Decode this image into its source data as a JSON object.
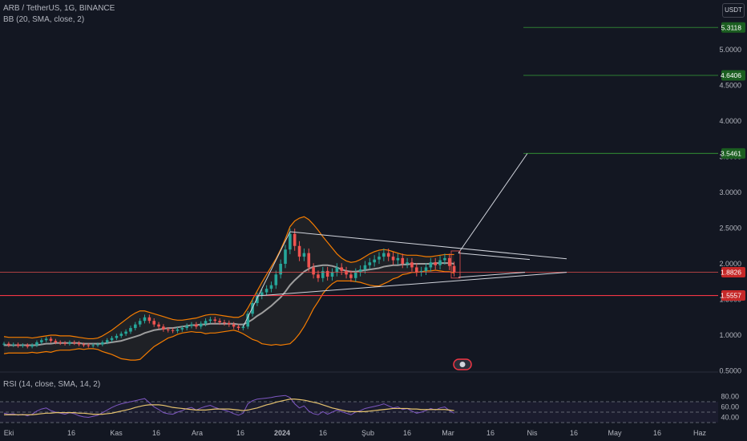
{
  "header": {
    "symbol_line": "ARB / TetherUS, 1G, BINANCE",
    "indicator_line": "BB (20, SMA, close, 2)",
    "rsi_line": "RSI (14, close, SMA, 14, 2)",
    "currency": "USDT"
  },
  "colors": {
    "background": "#131722",
    "candle_up": "#26a69a",
    "candle_down": "#ef5350",
    "bb_band": "#f57c00",
    "bb_basis": "#9e9e9e",
    "rsi_line": "#7e57c2",
    "rsi_ma": "#e6c36e",
    "target_line": "#2e7d32",
    "support_line": "#f23645",
    "pattern_lines": "#d1d4dc"
  },
  "chart_data": [
    {
      "type": "candlestick",
      "title": "ARB / TetherUS, 1G, BINANCE",
      "ylim": [
        0.46,
        5.5
      ],
      "y_ticks": [
        "5.0000",
        "4.5000",
        "4.0000",
        "3.5000",
        "3.0000",
        "2.5000",
        "2.0000",
        "1.5000",
        "1.0000",
        "0.5000"
      ],
      "x_ticks": [
        "Eki",
        "16",
        "Kas",
        "16",
        "Ara",
        "16",
        "2024",
        "16",
        "Şub",
        "16",
        "Mar",
        "16",
        "Nis",
        "16",
        "May",
        "16",
        "Haz"
      ],
      "price_tags": [
        {
          "label": "5.3118",
          "value": 5.3118,
          "kind": "target"
        },
        {
          "label": "4.6406",
          "value": 4.6406,
          "kind": "target"
        },
        {
          "label": "3.5461",
          "value": 3.5461,
          "kind": "target"
        },
        {
          "label": "1.8826",
          "value": 1.8826,
          "kind": "current"
        },
        {
          "label": "1.5557",
          "value": 1.5557,
          "kind": "support"
        }
      ],
      "closes": [
        0.88,
        0.86,
        0.87,
        0.85,
        0.86,
        0.84,
        0.86,
        0.9,
        0.93,
        0.95,
        0.92,
        0.9,
        0.89,
        0.88,
        0.9,
        0.89,
        0.87,
        0.86,
        0.85,
        0.86,
        0.87,
        0.9,
        0.93,
        0.96,
        0.99,
        1.02,
        1.05,
        1.1,
        1.15,
        1.2,
        1.25,
        1.2,
        1.15,
        1.12,
        1.08,
        1.07,
        1.06,
        1.08,
        1.1,
        1.13,
        1.15,
        1.12,
        1.16,
        1.2,
        1.22,
        1.2,
        1.18,
        1.17,
        1.15,
        1.12,
        1.1,
        1.12,
        1.3,
        1.45,
        1.55,
        1.6,
        1.65,
        1.7,
        1.85,
        2.0,
        2.2,
        2.42,
        2.25,
        2.1,
        2.15,
        1.95,
        1.85,
        1.8,
        1.9,
        1.82,
        1.88,
        1.95,
        1.9,
        1.85,
        1.8,
        1.88,
        1.92,
        1.98,
        2.02,
        2.06,
        2.1,
        2.15,
        2.1,
        2.05,
        2.08,
        2.0,
        2.02,
        1.95,
        1.88,
        1.9,
        1.95,
        2.02,
        1.98,
        2.05,
        2.08,
        1.97,
        1.88
      ],
      "bollinger": {
        "upper": [
          0.98,
          0.97,
          0.97,
          0.97,
          0.97,
          0.97,
          0.96,
          0.97,
          0.98,
          0.99,
          1.0,
          1.0,
          0.99,
          0.99,
          0.99,
          0.98,
          0.97,
          0.96,
          0.95,
          0.95,
          0.96,
          0.99,
          1.03,
          1.07,
          1.12,
          1.17,
          1.22,
          1.27,
          1.31,
          1.34,
          1.34,
          1.32,
          1.3,
          1.28,
          1.26,
          1.24,
          1.22,
          1.21,
          1.21,
          1.22,
          1.23,
          1.24,
          1.26,
          1.28,
          1.29,
          1.29,
          1.28,
          1.27,
          1.26,
          1.25,
          1.25,
          1.28,
          1.38,
          1.5,
          1.62,
          1.74,
          1.85,
          1.96,
          2.07,
          2.2,
          2.35,
          2.52,
          2.6,
          2.64,
          2.66,
          2.62,
          2.55,
          2.47,
          2.38,
          2.3,
          2.22,
          2.14,
          2.08,
          2.04,
          2.02,
          2.03,
          2.06,
          2.1,
          2.14,
          2.17,
          2.19,
          2.2,
          2.19,
          2.17,
          2.15,
          2.13,
          2.12,
          2.12,
          2.12,
          2.11,
          2.1,
          2.1,
          2.11,
          2.12,
          2.13,
          2.13,
          2.13
        ],
        "basis": [
          0.86,
          0.86,
          0.86,
          0.86,
          0.86,
          0.86,
          0.86,
          0.86,
          0.87,
          0.88,
          0.88,
          0.89,
          0.89,
          0.89,
          0.89,
          0.89,
          0.89,
          0.88,
          0.88,
          0.88,
          0.88,
          0.88,
          0.89,
          0.9,
          0.91,
          0.92,
          0.94,
          0.96,
          0.98,
          1.0,
          1.03,
          1.05,
          1.07,
          1.08,
          1.09,
          1.1,
          1.1,
          1.11,
          1.12,
          1.13,
          1.14,
          1.14,
          1.15,
          1.15,
          1.16,
          1.16,
          1.16,
          1.16,
          1.16,
          1.16,
          1.15,
          1.15,
          1.18,
          1.22,
          1.27,
          1.31,
          1.36,
          1.41,
          1.47,
          1.53,
          1.61,
          1.7,
          1.77,
          1.83,
          1.89,
          1.93,
          1.96,
          1.97,
          1.98,
          1.98,
          1.97,
          1.95,
          1.92,
          1.9,
          1.89,
          1.89,
          1.9,
          1.91,
          1.92,
          1.93,
          1.94,
          1.96,
          1.97,
          1.98,
          1.98,
          1.99,
          1.99,
          2.0,
          2.0,
          2.0,
          2.0,
          2.0,
          2.01,
          2.01,
          2.01,
          2.01,
          2.0
        ],
        "lower": [
          0.74,
          0.75,
          0.75,
          0.75,
          0.75,
          0.75,
          0.76,
          0.75,
          0.76,
          0.77,
          0.76,
          0.78,
          0.79,
          0.79,
          0.79,
          0.8,
          0.81,
          0.8,
          0.81,
          0.81,
          0.8,
          0.77,
          0.75,
          0.73,
          0.7,
          0.67,
          0.66,
          0.65,
          0.65,
          0.66,
          0.72,
          0.78,
          0.84,
          0.88,
          0.92,
          0.96,
          0.98,
          1.01,
          1.03,
          1.04,
          1.05,
          1.04,
          1.04,
          1.02,
          1.03,
          1.03,
          1.04,
          1.05,
          1.06,
          1.07,
          1.05,
          1.02,
          0.98,
          0.94,
          0.92,
          0.88,
          0.87,
          0.86,
          0.87,
          0.86,
          0.87,
          0.88,
          0.94,
          1.02,
          1.12,
          1.24,
          1.37,
          1.47,
          1.58,
          1.66,
          1.72,
          1.76,
          1.76,
          1.76,
          1.76,
          1.75,
          1.74,
          1.72,
          1.7,
          1.69,
          1.69,
          1.72,
          1.75,
          1.79,
          1.81,
          1.85,
          1.86,
          1.88,
          1.88,
          1.89,
          1.9,
          1.9,
          1.91,
          1.9,
          1.89,
          1.89,
          1.87
        ]
      },
      "pattern": {
        "triangle_upper": [
          [
            61,
            2.45
          ],
          [
            120,
            2.07
          ]
        ],
        "triangle_lower": [
          [
            54,
            1.55
          ],
          [
            120,
            1.88
          ]
        ],
        "flagpole": [
          [
            51,
            1.12
          ],
          [
            61,
            2.45
          ]
        ],
        "projection": [
          [
            103,
            1.75
          ],
          [
            120,
            3.5461
          ]
        ]
      }
    },
    {
      "type": "line",
      "title": "RSI (14, close, SMA, 14, 2)",
      "ylim": [
        32,
        82
      ],
      "y_ticks": [
        "80.00",
        "60.00",
        "40.00"
      ],
      "bands": [
        70,
        50,
        30
      ],
      "series": [
        {
          "values": [
            48,
            46,
            47,
            44,
            46,
            43,
            46,
            52,
            56,
            58,
            53,
            50,
            48,
            46,
            49,
            47,
            43,
            41,
            40,
            42,
            44,
            49,
            54,
            59,
            63,
            66,
            68,
            70,
            72,
            74,
            76,
            68,
            60,
            55,
            49,
            47,
            46,
            50,
            53,
            57,
            59,
            54,
            58,
            61,
            63,
            59,
            56,
            54,
            51,
            47,
            44,
            48,
            66,
            72,
            75,
            76,
            77,
            78,
            80,
            81,
            82,
            78,
            66,
            58,
            62,
            52,
            47,
            45,
            51,
            46,
            50,
            54,
            51,
            48,
            45,
            50,
            53,
            57,
            59,
            61,
            63,
            66,
            62,
            58,
            60,
            55,
            57,
            52,
            48,
            50,
            53,
            57,
            54,
            58,
            60,
            53,
            48
          ]
        },
        {
          "values": [
            45,
            45,
            45,
            45,
            45,
            45,
            45,
            46,
            47,
            48,
            48,
            49,
            49,
            49,
            49,
            49,
            48,
            48,
            47,
            46,
            46,
            46,
            47,
            48,
            50,
            52,
            54,
            56,
            59,
            61,
            63,
            64,
            64,
            64,
            63,
            61,
            59,
            58,
            57,
            56,
            55,
            54,
            54,
            54,
            55,
            56,
            56,
            56,
            56,
            55,
            54,
            53,
            54,
            56,
            58,
            61,
            64,
            66,
            69,
            71,
            73,
            75,
            75,
            74,
            73,
            71,
            69,
            67,
            64,
            61,
            58,
            56,
            54,
            52,
            51,
            51,
            51,
            51,
            52,
            53,
            54,
            55,
            56,
            57,
            57,
            57,
            57,
            56,
            56,
            55,
            55,
            55,
            55,
            55,
            55,
            54,
            53
          ]
        }
      ]
    }
  ]
}
